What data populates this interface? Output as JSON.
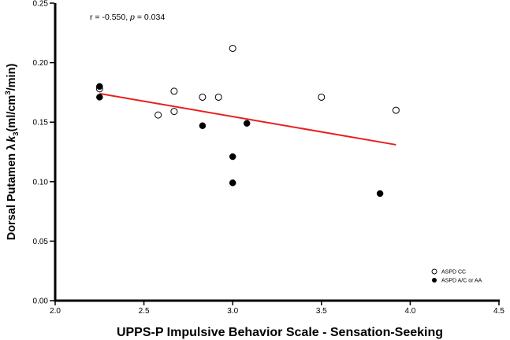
{
  "chart_data": {
    "type": "scatter",
    "title": "",
    "xlabel": "UPPS-P Impulsive Behavior Scale - Sensation-Seeking",
    "ylabel_main": "Dorsal Putamen λ",
    "ylabel_k": "k",
    "ylabel_sub": "3",
    "ylabel_units_a": "(ml/cm",
    "ylabel_units_sup": "3",
    "ylabel_units_b": "/min)",
    "xlim": [
      2.0,
      4.5
    ],
    "ylim": [
      0.0,
      0.25
    ],
    "xticks": [
      "2.0",
      "2.5",
      "3.0",
      "3.5",
      "4.0",
      "4.5"
    ],
    "xtick_values": [
      2.0,
      2.5,
      3.0,
      3.5,
      4.0,
      4.5
    ],
    "yticks": [
      "0.00",
      "0.05",
      "0.10",
      "0.15",
      "0.20",
      "0.25"
    ],
    "ytick_values": [
      0.0,
      0.05,
      0.1,
      0.15,
      0.2,
      0.25
    ],
    "grid": false,
    "legend_position": "bottom-right",
    "annotation": {
      "prefix": "r = -0.550, ",
      "p_symbol": "p",
      "suffix": " = 0.034"
    },
    "series": [
      {
        "name": "ASPD CC",
        "marker": "open-circle",
        "x": [
          2.25,
          2.58,
          2.67,
          2.67,
          2.83,
          2.92,
          3.0,
          3.5,
          3.92
        ],
        "y": [
          0.178,
          0.156,
          0.159,
          0.176,
          0.171,
          0.171,
          0.212,
          0.171,
          0.16
        ]
      },
      {
        "name": "ASPD A/C or AA",
        "marker": "filled-circle",
        "x": [
          2.25,
          2.25,
          2.83,
          3.0,
          3.0,
          3.08,
          3.83
        ],
        "y": [
          0.18,
          0.171,
          0.147,
          0.121,
          0.099,
          0.149,
          0.09
        ]
      }
    ],
    "regression_line": {
      "x": [
        2.25,
        3.92
      ],
      "y": [
        0.174,
        0.131
      ],
      "color": "#e8201f"
    }
  }
}
